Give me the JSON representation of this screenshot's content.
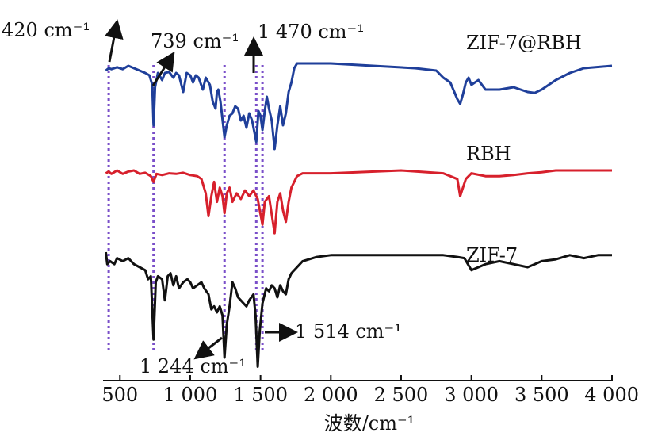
{
  "chart_data": {
    "type": "line",
    "title": "",
    "xlabel": "波数/cm⁻¹",
    "ylabel": "",
    "xlim": [
      380,
      4000
    ],
    "x_ticks": [
      500,
      1000,
      1500,
      2000,
      2500,
      3000,
      3500,
      4000
    ],
    "x_tick_labels": [
      "500",
      "1 000",
      "1 500",
      "2 000",
      "2 500",
      "3 000",
      "3 500",
      "4 000"
    ],
    "grid": false,
    "colors": {
      "ZIF-7@RBH": "#1f3f9a",
      "RBH": "#d7202c",
      "ZIF-7": "#111111",
      "marker_lines": "#7a4fc9"
    },
    "series": [
      {
        "name": "ZIF-7@RBH",
        "points": [
          [
            400,
            0.15
          ],
          [
            420,
            0.1
          ],
          [
            440,
            0.12
          ],
          [
            480,
            0.08
          ],
          [
            520,
            0.12
          ],
          [
            560,
            0.05
          ],
          [
            600,
            0.1
          ],
          [
            640,
            0.15
          ],
          [
            680,
            0.2
          ],
          [
            710,
            0.25
          ],
          [
            730,
            0.45
          ],
          [
            739,
            1.3
          ],
          [
            750,
            0.5
          ],
          [
            770,
            0.2
          ],
          [
            800,
            0.35
          ],
          [
            820,
            0.2
          ],
          [
            850,
            0.18
          ],
          [
            880,
            0.3
          ],
          [
            900,
            0.2
          ],
          [
            920,
            0.25
          ],
          [
            950,
            0.6
          ],
          [
            975,
            0.2
          ],
          [
            1000,
            0.25
          ],
          [
            1020,
            0.4
          ],
          [
            1040,
            0.25
          ],
          [
            1060,
            0.3
          ],
          [
            1090,
            0.55
          ],
          [
            1110,
            0.3
          ],
          [
            1140,
            0.45
          ],
          [
            1160,
            0.8
          ],
          [
            1180,
            0.95
          ],
          [
            1190,
            0.6
          ],
          [
            1200,
            0.55
          ],
          [
            1215,
            0.8
          ],
          [
            1244,
            1.55
          ],
          [
            1260,
            1.3
          ],
          [
            1280,
            1.1
          ],
          [
            1300,
            1.05
          ],
          [
            1320,
            0.9
          ],
          [
            1340,
            0.95
          ],
          [
            1360,
            1.2
          ],
          [
            1380,
            1.1
          ],
          [
            1400,
            1.35
          ],
          [
            1420,
            1.05
          ],
          [
            1440,
            1.2
          ],
          [
            1470,
            1.65
          ],
          [
            1485,
            1.0
          ],
          [
            1500,
            1.1
          ],
          [
            1514,
            1.4
          ],
          [
            1530,
            1.0
          ],
          [
            1545,
            0.7
          ],
          [
            1560,
            0.95
          ],
          [
            1580,
            1.2
          ],
          [
            1600,
            1.8
          ],
          [
            1620,
            1.3
          ],
          [
            1640,
            0.9
          ],
          [
            1660,
            1.3
          ],
          [
            1680,
            1.05
          ],
          [
            1700,
            0.6
          ],
          [
            1720,
            0.4
          ],
          [
            1740,
            0.1
          ],
          [
            1760,
            0.0
          ],
          [
            2000,
            0.0
          ],
          [
            2300,
            0.05
          ],
          [
            2600,
            0.1
          ],
          [
            2750,
            0.15
          ],
          [
            2800,
            0.3
          ],
          [
            2850,
            0.4
          ],
          [
            2900,
            0.75
          ],
          [
            2920,
            0.85
          ],
          [
            2940,
            0.65
          ],
          [
            2960,
            0.4
          ],
          [
            2980,
            0.3
          ],
          [
            3000,
            0.45
          ],
          [
            3050,
            0.35
          ],
          [
            3100,
            0.55
          ],
          [
            3200,
            0.55
          ],
          [
            3300,
            0.5
          ],
          [
            3400,
            0.6
          ],
          [
            3450,
            0.62
          ],
          [
            3500,
            0.55
          ],
          [
            3600,
            0.35
          ],
          [
            3700,
            0.2
          ],
          [
            3800,
            0.1
          ],
          [
            4000,
            0.05
          ]
        ]
      },
      {
        "name": "RBH",
        "points": [
          [
            400,
            0.05
          ],
          [
            420,
            0.02
          ],
          [
            440,
            0.06
          ],
          [
            480,
            0.0
          ],
          [
            520,
            0.06
          ],
          [
            560,
            0.02
          ],
          [
            600,
            0.0
          ],
          [
            640,
            0.06
          ],
          [
            680,
            0.04
          ],
          [
            720,
            0.1
          ],
          [
            739,
            0.2
          ],
          [
            760,
            0.06
          ],
          [
            800,
            0.08
          ],
          [
            850,
            0.05
          ],
          [
            900,
            0.06
          ],
          [
            950,
            0.04
          ],
          [
            1000,
            0.08
          ],
          [
            1050,
            0.1
          ],
          [
            1080,
            0.15
          ],
          [
            1110,
            0.4
          ],
          [
            1130,
            0.8
          ],
          [
            1150,
            0.45
          ],
          [
            1170,
            0.2
          ],
          [
            1190,
            0.55
          ],
          [
            1210,
            0.3
          ],
          [
            1230,
            0.45
          ],
          [
            1244,
            0.75
          ],
          [
            1260,
            0.4
          ],
          [
            1280,
            0.3
          ],
          [
            1300,
            0.55
          ],
          [
            1330,
            0.4
          ],
          [
            1360,
            0.5
          ],
          [
            1390,
            0.35
          ],
          [
            1420,
            0.45
          ],
          [
            1450,
            0.35
          ],
          [
            1480,
            0.5
          ],
          [
            1514,
            0.95
          ],
          [
            1530,
            0.55
          ],
          [
            1560,
            0.45
          ],
          [
            1600,
            1.1
          ],
          [
            1620,
            0.55
          ],
          [
            1640,
            0.4
          ],
          [
            1660,
            0.7
          ],
          [
            1680,
            0.9
          ],
          [
            1700,
            0.55
          ],
          [
            1720,
            0.3
          ],
          [
            1760,
            0.1
          ],
          [
            1800,
            0.05
          ],
          [
            2000,
            0.05
          ],
          [
            2500,
            0.0
          ],
          [
            2800,
            0.05
          ],
          [
            2900,
            0.15
          ],
          [
            2920,
            0.45
          ],
          [
            2940,
            0.3
          ],
          [
            2960,
            0.15
          ],
          [
            3000,
            0.05
          ],
          [
            3100,
            0.1
          ],
          [
            3200,
            0.1
          ],
          [
            3300,
            0.08
          ],
          [
            3400,
            0.05
          ],
          [
            3500,
            0.03
          ],
          [
            3600,
            0.0
          ],
          [
            4000,
            0.0
          ]
        ]
      },
      {
        "name": "ZIF-7",
        "points": [
          [
            400,
            0.0
          ],
          [
            410,
            0.2
          ],
          [
            430,
            0.15
          ],
          [
            460,
            0.2
          ],
          [
            480,
            0.1
          ],
          [
            520,
            0.15
          ],
          [
            560,
            0.1
          ],
          [
            600,
            0.2
          ],
          [
            640,
            0.25
          ],
          [
            680,
            0.3
          ],
          [
            700,
            0.45
          ],
          [
            720,
            0.4
          ],
          [
            739,
            1.45
          ],
          [
            755,
            0.5
          ],
          [
            770,
            0.4
          ],
          [
            800,
            0.45
          ],
          [
            820,
            0.8
          ],
          [
            840,
            0.4
          ],
          [
            860,
            0.35
          ],
          [
            880,
            0.55
          ],
          [
            900,
            0.4
          ],
          [
            920,
            0.6
          ],
          [
            950,
            0.5
          ],
          [
            980,
            0.45
          ],
          [
            1000,
            0.5
          ],
          [
            1020,
            0.6
          ],
          [
            1050,
            0.55
          ],
          [
            1080,
            0.5
          ],
          [
            1100,
            0.6
          ],
          [
            1130,
            0.7
          ],
          [
            1150,
            0.95
          ],
          [
            1170,
            0.9
          ],
          [
            1190,
            1.0
          ],
          [
            1210,
            0.9
          ],
          [
            1230,
            1.05
          ],
          [
            1244,
            1.75
          ],
          [
            1260,
            1.2
          ],
          [
            1280,
            0.9
          ],
          [
            1300,
            0.5
          ],
          [
            1320,
            0.6
          ],
          [
            1340,
            0.75
          ],
          [
            1360,
            0.8
          ],
          [
            1380,
            0.85
          ],
          [
            1400,
            0.9
          ],
          [
            1420,
            0.8
          ],
          [
            1450,
            0.7
          ],
          [
            1465,
            1.05
          ],
          [
            1480,
            1.9
          ],
          [
            1495,
            1.3
          ],
          [
            1514,
            0.85
          ],
          [
            1540,
            0.6
          ],
          [
            1560,
            0.65
          ],
          [
            1580,
            0.55
          ],
          [
            1600,
            0.6
          ],
          [
            1620,
            0.75
          ],
          [
            1640,
            0.55
          ],
          [
            1660,
            0.65
          ],
          [
            1680,
            0.7
          ],
          [
            1700,
            0.45
          ],
          [
            1720,
            0.35
          ],
          [
            1760,
            0.25
          ],
          [
            1800,
            0.15
          ],
          [
            1900,
            0.08
          ],
          [
            2000,
            0.05
          ],
          [
            2300,
            0.05
          ],
          [
            2600,
            0.05
          ],
          [
            2800,
            0.05
          ],
          [
            2900,
            0.08
          ],
          [
            2950,
            0.1
          ],
          [
            3000,
            0.3
          ],
          [
            3050,
            0.25
          ],
          [
            3100,
            0.2
          ],
          [
            3200,
            0.15
          ],
          [
            3300,
            0.2
          ],
          [
            3400,
            0.25
          ],
          [
            3450,
            0.2
          ],
          [
            3500,
            0.15
          ],
          [
            3600,
            0.12
          ],
          [
            3700,
            0.05
          ],
          [
            3800,
            0.1
          ],
          [
            3900,
            0.05
          ],
          [
            4000,
            0.05
          ]
        ]
      }
    ],
    "marker_lines": [
      420,
      739,
      1244,
      1470,
      1514
    ],
    "annotations": {
      "a420": "420 cm⁻¹",
      "a739": "739 cm⁻¹",
      "a1470": "1 470 cm⁻¹",
      "a1244": "1 244 cm⁻¹",
      "a1514": "1 514 cm⁻¹"
    }
  }
}
